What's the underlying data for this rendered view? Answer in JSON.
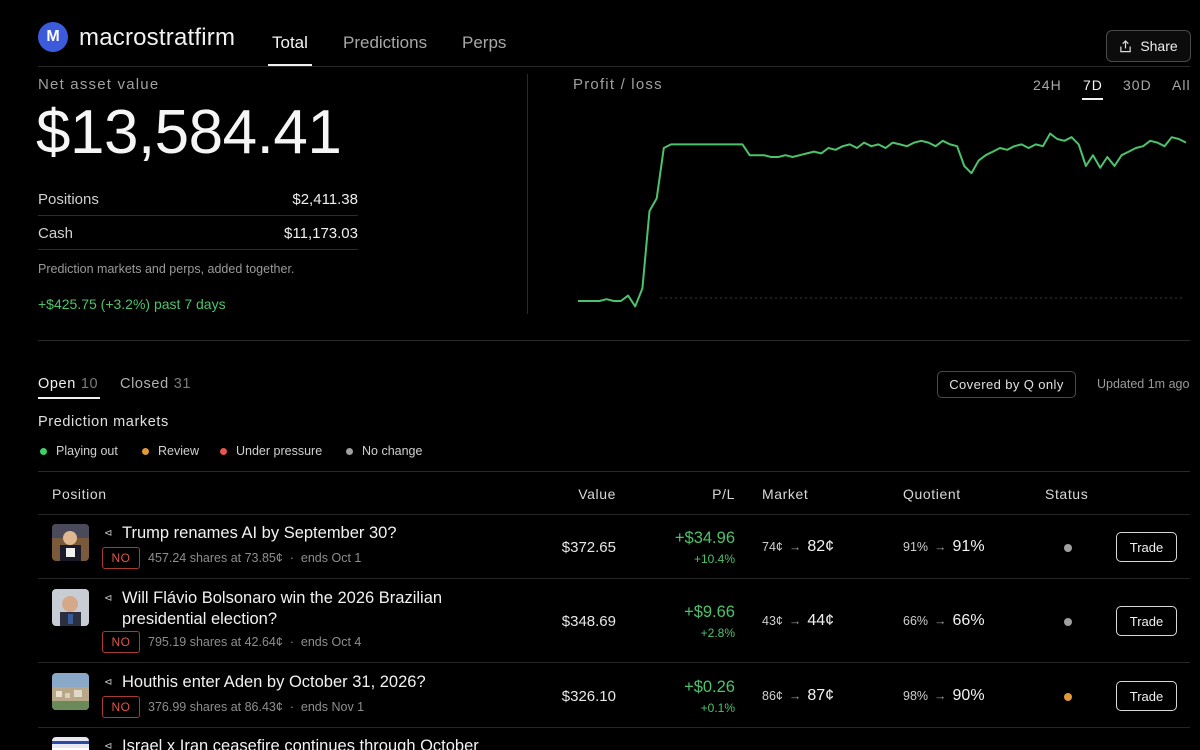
{
  "app": {
    "logo_letter": "M",
    "brand": "macrostratfirm"
  },
  "nav": {
    "tabs": [
      "Total",
      "Predictions",
      "Perps"
    ],
    "active": "Total",
    "share_label": "Share"
  },
  "summary": {
    "label": "Net asset value",
    "value": "$13,584.41",
    "positions_label": "Positions",
    "positions_value": "$2,411.38",
    "cash_label": "Cash",
    "cash_value": "$11,173.03",
    "note": "Prediction markets and perps, added together.",
    "change": "+$425.75 (+3.2%) past 7 days"
  },
  "pnl_chart": {
    "label": "Profit / loss",
    "ranges": [
      "24H",
      "7D",
      "30D",
      "All"
    ],
    "active_range": "7D",
    "line_color": "#4cc36b",
    "trend": [
      0.05,
      0.05,
      0.05,
      0.05,
      0.06,
      0.05,
      0.05,
      0.08,
      0.02,
      0.12,
      0.55,
      0.62,
      0.9,
      0.92,
      0.92,
      0.92,
      0.92,
      0.92,
      0.92,
      0.92,
      0.92,
      0.92,
      0.92,
      0.92,
      0.86,
      0.86,
      0.86,
      0.85,
      0.85,
      0.86,
      0.85,
      0.86,
      0.87,
      0.88,
      0.87,
      0.9,
      0.89,
      0.91,
      0.92,
      0.9,
      0.93,
      0.91,
      0.92,
      0.9,
      0.93,
      0.92,
      0.91,
      0.93,
      0.94,
      0.93,
      0.91,
      0.94,
      0.92,
      0.91,
      0.8,
      0.76,
      0.83,
      0.86,
      0.88,
      0.9,
      0.89,
      0.91,
      0.92,
      0.9,
      0.92,
      0.91,
      0.98,
      0.95,
      0.94,
      0.96,
      0.92,
      0.8,
      0.86,
      0.79,
      0.85,
      0.8,
      0.86,
      0.88,
      0.9,
      0.91,
      0.94,
      0.93,
      0.91,
      0.96,
      0.95,
      0.93
    ]
  },
  "positions_tabs": {
    "open_label": "Open",
    "open_count": "10",
    "closed_label": "Closed",
    "closed_count": "31",
    "filter_label": "Covered by Q only",
    "updated": "Updated 1m ago"
  },
  "prediction_markets": {
    "title": "Prediction markets",
    "legend": [
      {
        "label": "Playing out",
        "color": "#3ecf6a"
      },
      {
        "label": "Review",
        "color": "#e09a3c"
      },
      {
        "label": "Under pressure",
        "color": "#e5564c"
      },
      {
        "label": "No change",
        "color": "#a0a0a0"
      }
    ],
    "columns": {
      "position": "Position",
      "value": "Value",
      "pl": "P/L",
      "market": "Market",
      "quotient": "Quotient",
      "status": "Status"
    },
    "rows": [
      {
        "title": "Trump renames AI by September 30?",
        "side": "NO",
        "shares": "457.24 shares at 73.85¢",
        "ends": "ends Oct 1",
        "value": "$372.65",
        "pl": "+$34.96",
        "pl_pct": "+10.4%",
        "market_from": "74¢",
        "market_to": "82¢",
        "quotient_from": "91%",
        "quotient_to": "91%",
        "status_color": "#a0a0a0",
        "trade": "Trade"
      },
      {
        "title": "Will Flávio Bolsonaro win the 2026 Brazilian presidential election?",
        "side": "NO",
        "shares": "795.19 shares at 42.64¢",
        "ends": "ends Oct 4",
        "value": "$348.69",
        "pl": "+$9.66",
        "pl_pct": "+2.8%",
        "market_from": "43¢",
        "market_to": "44¢",
        "quotient_from": "66%",
        "quotient_to": "66%",
        "status_color": "#a0a0a0",
        "trade": "Trade"
      },
      {
        "title": "Houthis enter Aden by October 31, 2026?",
        "side": "NO",
        "shares": "376.99 shares at 86.43¢",
        "ends": "ends Nov 1",
        "value": "$326.10",
        "pl": "+$0.26",
        "pl_pct": "+0.1%",
        "market_from": "86¢",
        "market_to": "87¢",
        "quotient_from": "98%",
        "quotient_to": "90%",
        "status_color": "#e09a3c",
        "trade": "Trade"
      },
      {
        "title": "Israel x Iran ceasefire continues through October"
      }
    ]
  }
}
